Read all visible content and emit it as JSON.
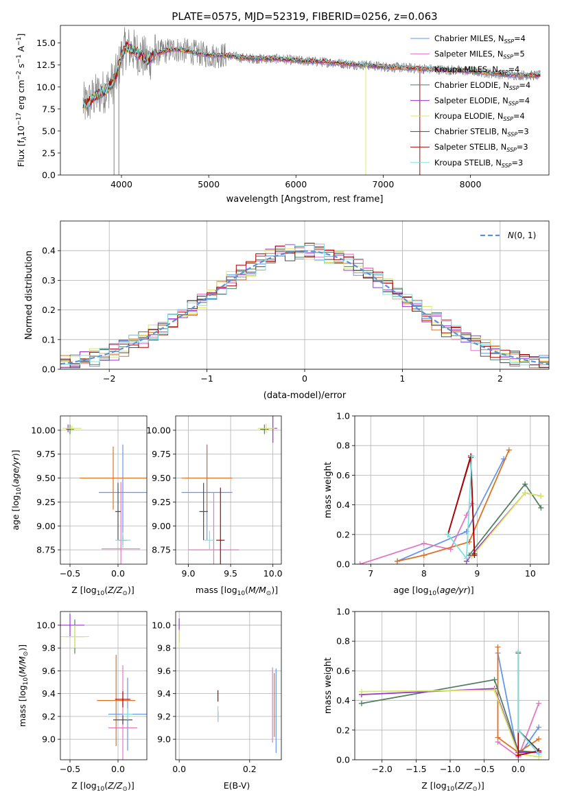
{
  "figure": {
    "title": "PLATE=0575, MJD=52319, FIBERID=0256, z=0.063"
  },
  "colors": {
    "Chabrier MILES": "#6495ed",
    "Salpeter MILES": "#e377c2",
    "Kroupa MILES": "#e07020",
    "Chabrier ELODIE": "#4f7f5f",
    "Salpeter ELODIE": "#9b30d0",
    "Kroupa ELODIE": "#d8e860",
    "Chabrier STELIB": "#4a4a4a",
    "Salpeter STELIB": "#b00000",
    "Kroupa STELIB": "#7fdfe0",
    "data": "#808080",
    "normal": "#5b8fd8"
  },
  "chart_data": [
    {
      "id": "spectrum",
      "type": "line",
      "xlabel": "wavelength [Angstrom, rest frame]",
      "ylabel": "Flux [f_λ10^−17 erg cm^−2 s^−1 A^−1]",
      "xlim": [
        3300,
        8900
      ],
      "ylim": [
        0,
        17
      ],
      "xticks": [
        4000,
        5000,
        6000,
        7000,
        8000
      ],
      "yticks": [
        0.0,
        2.5,
        5.0,
        7.5,
        10.0,
        12.5,
        15.0
      ],
      "grid": false,
      "legend_position": "upper right",
      "continuum_model": {
        "x": [
          3600,
          3700,
          3800,
          3900,
          3950,
          4000,
          4050,
          4100,
          4200,
          4300,
          4400,
          4600,
          4800,
          5000,
          5200,
          5400,
          5600,
          5800,
          6000,
          6200,
          6400,
          6600,
          6800,
          7000,
          7200,
          7400,
          7600,
          7800,
          8000,
          8200,
          8400,
          8800
        ],
        "y": [
          8.0,
          9.0,
          9.5,
          10.5,
          11.5,
          13.5,
          14.5,
          14.3,
          13.8,
          13.0,
          13.8,
          14.3,
          14.0,
          13.6,
          13.6,
          13.3,
          13.2,
          13.2,
          13.0,
          12.9,
          12.8,
          12.6,
          12.5,
          12.3,
          12.2,
          12.1,
          12.0,
          11.9,
          11.8,
          11.6,
          11.4,
          11.3
        ]
      },
      "dips": [
        {
          "x": 3915,
          "y": 0
        },
        {
          "x": 3970,
          "y": 0
        },
        {
          "x": 6800,
          "y": 0
        },
        {
          "x": 7420,
          "y": 0
        }
      ],
      "legend": [
        {
          "model": "Chabrier MILES",
          "label": "Chabrier MILES, N",
          "sub": "SSP",
          "suffix": "=4"
        },
        {
          "model": "Salpeter MILES",
          "label": "Salpeter MILES, N",
          "sub": "SSP",
          "suffix": "=5"
        },
        {
          "model": "Kroupa MILES",
          "label": "Kroupa MILES, N",
          "sub": "SSP",
          "suffix": "=4"
        },
        {
          "model": "Chabrier ELODIE",
          "label": "Chabrier ELODIE, N",
          "sub": "SSP",
          "suffix": "=4"
        },
        {
          "model": "Salpeter ELODIE",
          "label": "Salpeter ELODIE, N",
          "sub": "SSP",
          "suffix": "=4"
        },
        {
          "model": "Kroupa ELODIE",
          "label": "Kroupa ELODIE, N",
          "sub": "SSP",
          "suffix": "=4"
        },
        {
          "model": "Chabrier STELIB",
          "label": "Chabrier STELIB, N",
          "sub": "SSP",
          "suffix": "=3"
        },
        {
          "model": "Salpeter STELIB",
          "label": "Salpeter STELIB, N",
          "sub": "SSP",
          "suffix": "=3"
        },
        {
          "model": "Kroupa STELIB",
          "label": "Kroupa STELIB, N",
          "sub": "SSP",
          "suffix": "=3"
        }
      ]
    },
    {
      "id": "residuals",
      "type": "line",
      "xlabel": "(data-model)/error",
      "ylabel": "Normed distribution",
      "xlim": [
        -2.5,
        2.5
      ],
      "ylim": [
        0,
        0.5
      ],
      "xticks": [
        -2,
        -1,
        0,
        1,
        2
      ],
      "yticks": [
        0.0,
        0.1,
        0.2,
        0.3,
        0.4
      ],
      "grid": true,
      "legend_position": "upper right",
      "legend_label": "N(0,1)",
      "bins": {
        "start": -2.5,
        "width": 0.1,
        "count": 50
      }
    },
    {
      "id": "age_vs_Z",
      "type": "scatter",
      "xlabel": "Z [log10(Z/Z⊙)]",
      "ylabel": "age [log10(age/yr)]",
      "xlim": [
        -0.6,
        0.3
      ],
      "ylim": [
        8.6,
        10.15
      ],
      "xticks": [
        -0.5,
        0.0
      ],
      "yticks": [
        8.75,
        9.0,
        9.25,
        9.5,
        9.75,
        10.0
      ],
      "grid": true,
      "points": [
        {
          "model": "Chabrier MILES",
          "x": 0.05,
          "y": 9.35,
          "xerr": 0.25,
          "yerr": 0.5
        },
        {
          "model": "Salpeter MILES",
          "x": 0.03,
          "y": 8.76,
          "xerr": 0.2,
          "yerr": 0.7
        },
        {
          "model": "Kroupa MILES",
          "x": -0.05,
          "y": 9.5,
          "xerr": 0.35,
          "yerr": 0.33
        },
        {
          "model": "Chabrier ELODIE",
          "x": -0.5,
          "y": 10.01,
          "xerr": 0.04,
          "yerr": 0.05
        },
        {
          "model": "Salpeter ELODIE",
          "x": -0.52,
          "y": 10.02,
          "xerr": 0.03,
          "yerr": 0.04
        },
        {
          "model": "Kroupa ELODIE",
          "x": -0.48,
          "y": 10.02,
          "xerr": 0.1,
          "yerr": 0.03
        },
        {
          "model": "Chabrier STELIB",
          "x": 0.0,
          "y": 9.15,
          "xerr": 0.03,
          "yerr": 0.3
        },
        {
          "model": "Salpeter STELIB",
          "x": 0.05,
          "y": 8.85,
          "xerr": 0.04,
          "yerr": 0.05
        },
        {
          "model": "Kroupa STELIB",
          "x": 0.05,
          "y": 8.85,
          "xerr": 0.08,
          "yerr": 0.08
        }
      ]
    },
    {
      "id": "age_vs_mass",
      "type": "scatter",
      "xlabel": "mass [log10(M/M⊙)]",
      "ylabel": "",
      "xlim": [
        8.85,
        10.1
      ],
      "ylim": [
        8.6,
        10.15
      ],
      "xticks": [
        9.0,
        9.5,
        10.0
      ],
      "yticks": [
        8.75,
        9.0,
        9.25,
        9.5,
        9.75,
        10.0
      ],
      "grid": true,
      "points": [
        {
          "model": "Chabrier MILES",
          "x": 9.22,
          "y": 9.35,
          "xerr": 0.3,
          "yerr": 0.5
        },
        {
          "model": "Salpeter MILES",
          "x": 9.3,
          "y": 8.75,
          "xerr": 0.3,
          "yerr": 0.6
        },
        {
          "model": "Kroupa MILES",
          "x": 9.22,
          "y": 9.5,
          "xerr": 0.3,
          "yerr": 0.35
        },
        {
          "model": "Chabrier ELODIE",
          "x": 9.9,
          "y": 10.01,
          "xerr": 0.05,
          "yerr": 0.05
        },
        {
          "model": "Salpeter ELODIE",
          "x": 10.0,
          "y": 10.02,
          "xerr": 0.05,
          "yerr": 0.15
        },
        {
          "model": "Kroupa ELODIE",
          "x": 9.92,
          "y": 10.02,
          "xerr": 0.1,
          "yerr": 0.05
        },
        {
          "model": "Chabrier STELIB",
          "x": 9.18,
          "y": 9.15,
          "xerr": 0.05,
          "yerr": 0.3
        },
        {
          "model": "Salpeter STELIB",
          "x": 9.38,
          "y": 8.85,
          "xerr": 0.05,
          "yerr": 0.55
        },
        {
          "model": "Kroupa STELIB",
          "x": 9.25,
          "y": 8.85,
          "xerr": 0.06,
          "yerr": 0.1
        }
      ]
    },
    {
      "id": "mass_vs_Z",
      "type": "scatter",
      "xlabel": "Z [log10(Z/Z⊙)]",
      "ylabel": "mass [log10(M/M⊙)]",
      "xlim": [
        -0.6,
        0.3
      ],
      "ylim": [
        8.82,
        10.12
      ],
      "xticks": [
        -0.5,
        0.0
      ],
      "yticks": [
        9.0,
        9.2,
        9.4,
        9.6,
        9.8,
        10.0
      ],
      "grid": true,
      "points": [
        {
          "model": "Chabrier MILES",
          "x": 0.1,
          "y": 9.22,
          "xerr": 0.2,
          "yerr": 0.32
        },
        {
          "model": "Salpeter MILES",
          "x": 0.05,
          "y": 9.1,
          "xerr": 0.15,
          "yerr": 0.55
        },
        {
          "model": "Kroupa MILES",
          "x": -0.02,
          "y": 9.34,
          "xerr": 0.2,
          "yerr": 0.4
        },
        {
          "model": "Chabrier ELODIE",
          "x": -0.45,
          "y": 9.9,
          "xerr": 0.1,
          "yerr": 0.15
        },
        {
          "model": "Salpeter ELODIE",
          "x": -0.5,
          "y": 10.0,
          "xerr": 0.15,
          "yerr": 0.1
        },
        {
          "model": "Kroupa ELODIE",
          "x": -0.45,
          "y": 9.9,
          "xerr": 0.15,
          "yerr": 0.1
        },
        {
          "model": "Chabrier STELIB",
          "x": 0.05,
          "y": 9.17,
          "xerr": 0.1,
          "yerr": 0.04
        },
        {
          "model": "Salpeter STELIB",
          "x": 0.05,
          "y": 9.35,
          "xerr": 0.08,
          "yerr": 0.07
        },
        {
          "model": "Kroupa STELIB",
          "x": 0.1,
          "y": 9.22,
          "xerr": 0.05,
          "yerr": 0.05
        }
      ]
    },
    {
      "id": "mass_vs_EBV",
      "type": "scatter",
      "xlabel": "E(B-V)",
      "ylabel": "",
      "xlim": [
        -0.01,
        0.29
      ],
      "ylim": [
        8.82,
        10.12
      ],
      "xticks": [
        0.0,
        0.2
      ],
      "yticks": [
        9.0,
        9.2,
        9.4,
        9.6,
        9.8,
        10.0
      ],
      "grid": true,
      "points": [
        {
          "model": "Chabrier MILES",
          "x": 0.275,
          "y": 9.25,
          "xerr": 0,
          "yerr": 0.37
        },
        {
          "model": "Salpeter MILES",
          "x": 0.265,
          "y": 9.3,
          "xerr": 0,
          "yerr": 0.33
        },
        {
          "model": "Kroupa MILES",
          "x": 0.27,
          "y": 9.3,
          "xerr": 0,
          "yerr": 0.28
        },
        {
          "model": "Chabrier ELODIE",
          "x": 0.0,
          "y": 9.9,
          "xerr": 0,
          "yerr": 0.05
        },
        {
          "model": "Salpeter ELODIE",
          "x": 0.0,
          "y": 10.0,
          "xerr": 0,
          "yerr": 0.06
        },
        {
          "model": "Kroupa ELODIE",
          "x": 0.0,
          "y": 9.88,
          "xerr": 0,
          "yerr": 0.08
        },
        {
          "model": "Chabrier STELIB",
          "x": 0.11,
          "y": 9.2,
          "xerr": 0,
          "yerr": 0.04
        },
        {
          "model": "Salpeter STELIB",
          "x": 0.11,
          "y": 9.38,
          "xerr": 0,
          "yerr": 0.05
        },
        {
          "model": "Kroupa STELIB",
          "x": 0.11,
          "y": 9.22,
          "xerr": 0,
          "yerr": 0.07
        }
      ]
    },
    {
      "id": "weight_vs_age",
      "type": "line",
      "xlabel": "age [log10(age/yr)]",
      "ylabel": "mass weight",
      "xlim": [
        6.7,
        10.35
      ],
      "ylim": [
        0,
        1.0
      ],
      "xticks": [
        7,
        8,
        9,
        10
      ],
      "yticks": [
        0.0,
        0.2,
        0.4,
        0.6,
        0.8,
        1.0
      ],
      "grid": true,
      "series": [
        {
          "model": "Chabrier MILES",
          "x": [
            7.5,
            8.8,
            9.5
          ],
          "y": [
            0.02,
            0.22,
            0.71
          ]
        },
        {
          "model": "Salpeter MILES",
          "x": [
            6.8,
            8.0,
            8.5,
            8.8,
            8.9
          ],
          "y": [
            0.0,
            0.14,
            0.1,
            0.33,
            0.41
          ]
        },
        {
          "model": "Kroupa MILES",
          "x": [
            7.5,
            8.0,
            8.85,
            9.6
          ],
          "y": [
            0.02,
            0.06,
            0.15,
            0.77
          ]
        },
        {
          "model": "Chabrier ELODIE",
          "x": [
            8.85,
            9.9,
            10.2
          ],
          "y": [
            0.06,
            0.54,
            0.38
          ]
        },
        {
          "model": "Salpeter ELODIE",
          "x": [
            8.8,
            9.9,
            10.2
          ],
          "y": [
            0.02,
            0.48,
            0.46
          ]
        },
        {
          "model": "Kroupa ELODIE",
          "x": [
            8.9,
            9.9,
            10.2
          ],
          "y": [
            0.05,
            0.48,
            0.46
          ]
        },
        {
          "model": "Chabrier STELIB",
          "x": [
            8.45,
            8.88,
            8.95
          ],
          "y": [
            0.2,
            0.72,
            0.07
          ]
        },
        {
          "model": "Salpeter STELIB",
          "x": [
            8.45,
            8.88,
            8.95
          ],
          "y": [
            0.2,
            0.73,
            0.06
          ]
        },
        {
          "model": "Kroupa STELIB",
          "x": [
            8.45,
            8.8,
            8.9
          ],
          "y": [
            0.2,
            0.04,
            0.73
          ]
        }
      ]
    },
    {
      "id": "weight_vs_Z",
      "type": "line",
      "xlabel": "Z [log10(Z/Z⊙)]",
      "ylabel": "mass weight",
      "xlim": [
        -2.4,
        0.45
      ],
      "ylim": [
        0,
        1.0
      ],
      "xticks": [
        -2.0,
        -1.5,
        -1.0,
        -0.5,
        0.0
      ],
      "yticks": [
        0.0,
        0.2,
        0.4,
        0.6,
        0.8,
        1.0
      ],
      "grid": true,
      "series": [
        {
          "model": "Chabrier MILES",
          "x": [
            -0.3,
            0.0,
            0.3
          ],
          "y": [
            0.72,
            0.02,
            0.22
          ]
        },
        {
          "model": "Salpeter MILES",
          "x": [
            -0.3,
            0.0,
            0.3
          ],
          "y": [
            0.12,
            0.02,
            0.38
          ]
        },
        {
          "model": "Kroupa MILES",
          "x": [
            -0.3,
            -0.3,
            0.0,
            0.3
          ],
          "y": [
            0.76,
            0.15,
            0.05,
            0.14
          ]
        },
        {
          "model": "Chabrier ELODIE",
          "x": [
            -2.3,
            -0.35,
            0.0,
            0.3
          ],
          "y": [
            0.38,
            0.54,
            0.06,
            0.05
          ]
        },
        {
          "model": "Salpeter ELODIE",
          "x": [
            -2.3,
            -0.35,
            0.0,
            0.3
          ],
          "y": [
            0.44,
            0.48,
            0.05,
            0.05
          ]
        },
        {
          "model": "Kroupa ELODIE",
          "x": [
            -2.3,
            -0.35,
            0.0,
            0.3
          ],
          "y": [
            0.46,
            0.47,
            0.04,
            0.02
          ]
        },
        {
          "model": "Chabrier STELIB",
          "x": [
            0.0,
            0.0,
            0.3
          ],
          "y": [
            0.72,
            0.2,
            0.06
          ]
        },
        {
          "model": "Salpeter STELIB",
          "x": [
            0.0,
            0.0,
            0.3
          ],
          "y": [
            0.2,
            0.03,
            0.06
          ]
        },
        {
          "model": "Kroupa STELIB",
          "x": [
            0.0,
            0.0,
            0.3
          ],
          "y": [
            0.73,
            0.2,
            0.04
          ]
        }
      ]
    }
  ]
}
